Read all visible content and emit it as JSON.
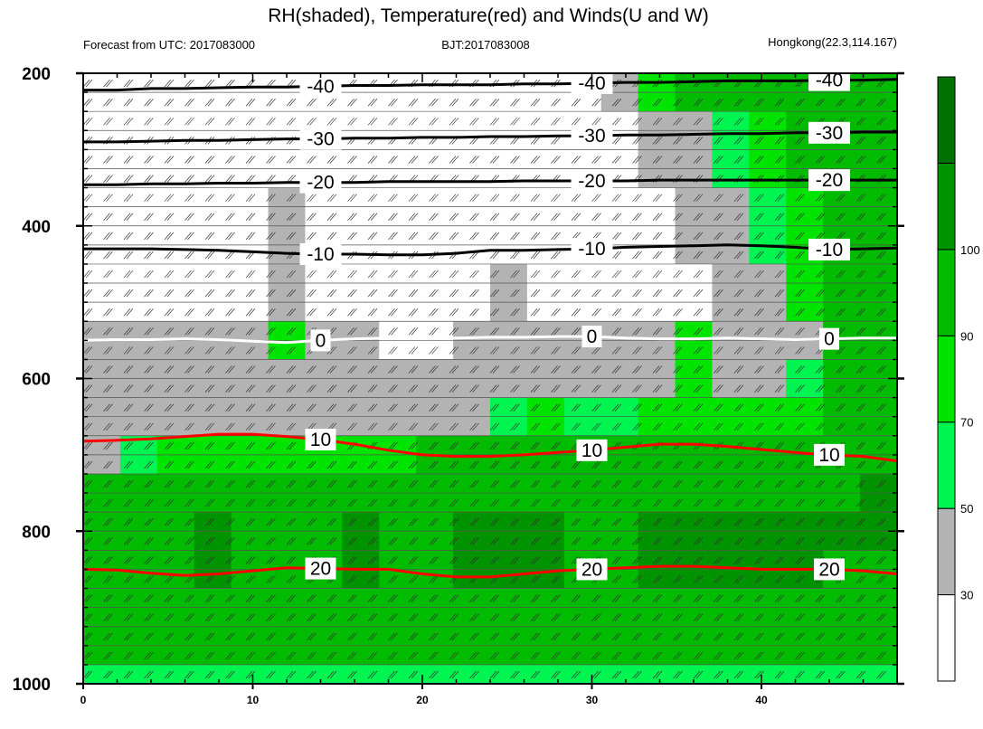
{
  "chart_data": {
    "type": "heatmap",
    "title": "RH(shaded), Temperature(red) and Winds(U and W)",
    "left_string": "Forecast from UTC: 2017083000",
    "center_string": "BJT:2017083008",
    "right_string": "Hongkong(22.3,114.167)",
    "x_range": [
      0,
      48
    ],
    "x_ticks": [
      "0",
      "10",
      "20",
      "30",
      "40"
    ],
    "x_tick_values": [
      0,
      10,
      20,
      30,
      40
    ],
    "y_range": [
      200,
      1000
    ],
    "y_reversed": true,
    "y_ticks": [
      "200",
      "400",
      "600",
      "800",
      "1000"
    ],
    "y_tick_values": [
      200,
      400,
      600,
      800,
      1000
    ],
    "colorbar": {
      "labels": [
        "30",
        "50",
        "70",
        "90",
        "100"
      ],
      "boundaries": [
        30,
        50,
        70,
        90,
        100
      ],
      "colors": [
        "#ffffff",
        "#b3b3b3",
        "#00f550",
        "#00e400",
        "#00bb00",
        "#009300",
        "#007000"
      ]
    },
    "rh_levels": [
      {
        "level": 200,
        "rh": [
          10,
          10,
          10,
          10,
          10,
          10,
          10,
          10,
          10,
          10,
          10,
          10,
          10,
          10,
          45,
          65,
          75,
          75,
          80,
          80,
          80,
          80
        ]
      },
      {
        "level": 300,
        "rh": [
          10,
          10,
          10,
          10,
          10,
          10,
          10,
          10,
          10,
          10,
          10,
          10,
          10,
          10,
          10,
          35,
          45,
          55,
          60,
          70,
          75,
          80
        ]
      },
      {
        "level": 400,
        "rh": [
          10,
          10,
          10,
          10,
          10,
          35,
          10,
          10,
          10,
          10,
          10,
          10,
          10,
          10,
          10,
          10,
          30,
          45,
          50,
          60,
          70,
          80
        ]
      },
      {
        "level": 500,
        "rh": [
          10,
          10,
          10,
          10,
          10,
          40,
          10,
          10,
          10,
          10,
          10,
          35,
          10,
          10,
          10,
          10,
          10,
          35,
          45,
          60,
          70,
          80
        ]
      },
      {
        "level": 550,
        "rh": [
          35,
          35,
          35,
          35,
          35,
          60,
          35,
          35,
          10,
          10,
          35,
          40,
          35,
          35,
          35,
          35,
          60,
          35,
          35,
          45,
          70,
          80
        ]
      },
      {
        "level": 600,
        "rh": [
          40,
          40,
          40,
          40,
          40,
          40,
          40,
          40,
          40,
          40,
          40,
          40,
          45,
          45,
          45,
          45,
          60,
          45,
          45,
          55,
          70,
          80
        ]
      },
      {
        "level": 650,
        "rh": [
          40,
          40,
          40,
          40,
          45,
          45,
          45,
          45,
          45,
          45,
          45,
          55,
          60,
          55,
          55,
          60,
          65,
          60,
          60,
          65,
          70,
          80
        ]
      },
      {
        "level": 700,
        "rh": [
          45,
          55,
          60,
          65,
          65,
          65,
          65,
          65,
          65,
          70,
          70,
          70,
          70,
          70,
          70,
          70,
          75,
          70,
          70,
          70,
          75,
          80
        ]
      },
      {
        "level": 750,
        "rh": [
          75,
          75,
          75,
          75,
          75,
          75,
          75,
          75,
          75,
          75,
          80,
          85,
          80,
          75,
          75,
          80,
          85,
          80,
          80,
          85,
          85,
          90
        ]
      },
      {
        "level": 800,
        "rh": [
          75,
          75,
          80,
          90,
          80,
          75,
          80,
          95,
          75,
          80,
          95,
          95,
          90,
          85,
          85,
          95,
          95,
          90,
          90,
          95,
          90,
          90
        ]
      },
      {
        "level": 850,
        "rh": [
          75,
          75,
          80,
          95,
          85,
          75,
          80,
          95,
          75,
          80,
          95,
          95,
          95,
          85,
          85,
          95,
          95,
          90,
          90,
          95,
          85,
          80
        ]
      },
      {
        "level": 900,
        "rh": [
          75,
          75,
          75,
          80,
          75,
          75,
          75,
          75,
          75,
          75,
          85,
          85,
          80,
          75,
          75,
          80,
          85,
          75,
          75,
          75,
          75,
          75
        ]
      },
      {
        "level": 950,
        "rh": [
          75,
          75,
          75,
          75,
          75,
          75,
          75,
          75,
          75,
          75,
          75,
          70,
          70,
          75,
          75,
          75,
          75,
          75,
          75,
          75,
          70,
          75
        ]
      },
      {
        "level": 1000,
        "rh": [
          50,
          50,
          50,
          50,
          50,
          50,
          50,
          50,
          50,
          50,
          50,
          50,
          50,
          50,
          50,
          50,
          50,
          50,
          50,
          50,
          50,
          50
        ]
      }
    ],
    "temperature_contours": [
      {
        "value": -40,
        "label": "-40",
        "color": "#000000",
        "pressure": [
          222,
          222,
          220,
          220,
          219,
          218,
          218,
          217,
          216,
          216,
          215,
          215,
          215,
          214,
          214,
          213,
          212,
          212,
          211,
          210,
          210,
          210,
          209,
          209,
          208
        ]
      },
      {
        "value": -30,
        "label": "-30",
        "color": "#000000",
        "pressure": [
          290,
          290,
          289,
          288,
          288,
          287,
          286,
          286,
          285,
          285,
          284,
          284,
          283,
          283,
          282,
          282,
          281,
          281,
          280,
          279,
          279,
          278,
          278,
          277,
          277
        ]
      },
      {
        "value": -20,
        "label": "-20",
        "color": "#000000",
        "pressure": [
          346,
          346,
          345,
          345,
          344,
          344,
          343,
          343,
          343,
          342,
          342,
          342,
          342,
          341,
          341,
          341,
          341,
          340,
          340,
          340,
          340,
          340,
          340,
          340,
          340
        ]
      },
      {
        "value": -10,
        "label": "-10",
        "color": "#000000",
        "pressure": [
          430,
          430,
          430,
          431,
          432,
          434,
          436,
          437,
          437,
          438,
          438,
          436,
          432,
          432,
          431,
          430,
          428,
          427,
          426,
          425,
          426,
          428,
          431,
          430,
          429
        ]
      },
      {
        "value": 0,
        "label": "0",
        "color": "#ffffff",
        "pressure": [
          550,
          549,
          549,
          548,
          549,
          551,
          553,
          550,
          548,
          547,
          547,
          547,
          546,
          546,
          545,
          545,
          547,
          548,
          548,
          547,
          548,
          549,
          548,
          547,
          547
        ]
      },
      {
        "value": 10,
        "label": "10",
        "color": "#ff0000",
        "pressure": [
          682,
          681,
          679,
          676,
          673,
          673,
          676,
          680,
          686,
          694,
          700,
          702,
          702,
          700,
          697,
          694,
          690,
          686,
          686,
          689,
          693,
          697,
          700,
          702,
          708
        ]
      },
      {
        "value": 20,
        "label": "20",
        "color": "#ff0000",
        "pressure": [
          850,
          851,
          855,
          858,
          856,
          852,
          848,
          849,
          850,
          850,
          856,
          860,
          860,
          856,
          852,
          850,
          848,
          846,
          846,
          848,
          850,
          850,
          850,
          852,
          856
        ]
      }
    ],
    "temperature_labels_extra": [
      "-40",
      "-40",
      "-40",
      "-30",
      "-30",
      "-20",
      "-20",
      "-10",
      "-10",
      "-10",
      "0",
      "0",
      "10",
      "10",
      "10",
      "20",
      "20",
      "20"
    ]
  }
}
